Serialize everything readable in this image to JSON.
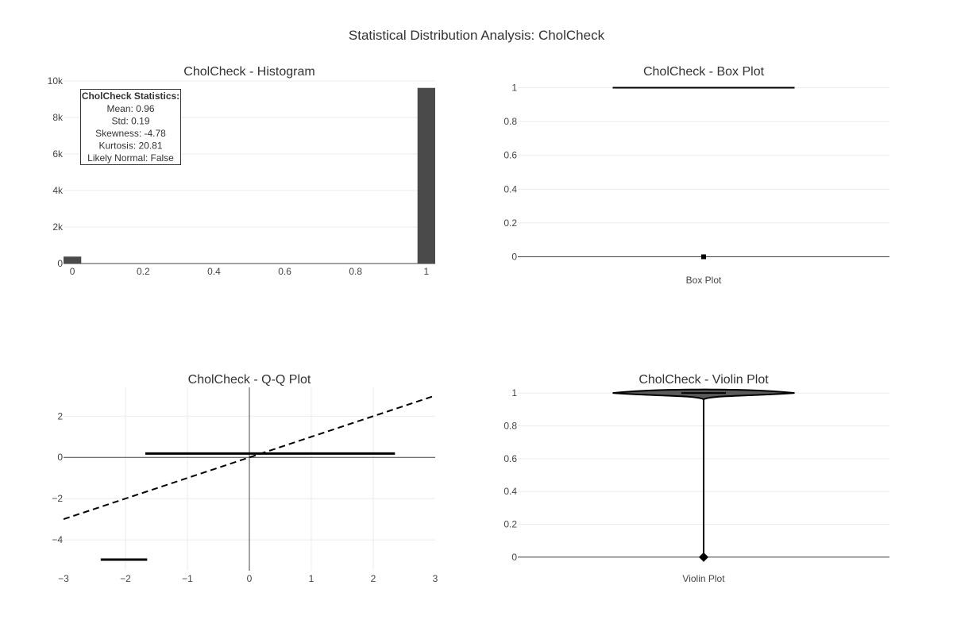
{
  "title": "Statistical Distribution Analysis: CholCheck",
  "colors": {
    "bar": "#4a4a4a",
    "line": "#000000",
    "violin_fill": "#5a5a5a"
  },
  "chart_data": [
    {
      "id": "histogram",
      "type": "bar",
      "title": "CholCheck - Histogram",
      "bins": [
        {
          "x0": -0.025,
          "x1": 0.025,
          "count": 380
        },
        {
          "x0": 0.975,
          "x1": 1.025,
          "count": 9620
        }
      ],
      "xlim": [
        -0.025,
        1.025
      ],
      "ylim": [
        0,
        10000
      ],
      "xticks": [
        {
          "v": 0,
          "label": "0"
        },
        {
          "v": 0.2,
          "label": "0.2"
        },
        {
          "v": 0.4,
          "label": "0.4"
        },
        {
          "v": 0.6,
          "label": "0.6"
        },
        {
          "v": 0.8,
          "label": "0.8"
        },
        {
          "v": 1,
          "label": "1"
        }
      ],
      "yticks": [
        {
          "v": 0,
          "label": "0"
        },
        {
          "v": 2000,
          "label": "2k"
        },
        {
          "v": 4000,
          "label": "4k"
        },
        {
          "v": 6000,
          "label": "6k"
        },
        {
          "v": 8000,
          "label": "8k"
        },
        {
          "v": 10000,
          "label": "10k"
        }
      ],
      "stats": {
        "heading": "CholCheck Statistics:",
        "lines": [
          "Mean: 0.96",
          "Std: 0.19",
          "Skewness: -4.78",
          "Kurtosis: 20.81",
          "Likely Normal: False"
        ]
      }
    },
    {
      "id": "box",
      "type": "box",
      "title": "CholCheck - Box Plot",
      "category": "Box Plot",
      "q1": 1,
      "median": 1,
      "q3": 1,
      "lowerfence": 1,
      "upperfence": 1,
      "outliers": [
        0
      ],
      "ylim": [
        -0.04,
        1.04
      ],
      "yticks": [
        {
          "v": 0,
          "label": "0"
        },
        {
          "v": 0.2,
          "label": "0.2"
        },
        {
          "v": 0.4,
          "label": "0.4"
        },
        {
          "v": 0.6,
          "label": "0.6"
        },
        {
          "v": 0.8,
          "label": "0.8"
        },
        {
          "v": 1,
          "label": "1"
        }
      ]
    },
    {
      "id": "qq",
      "type": "scatter",
      "title": "CholCheck - Q-Q Plot",
      "segments": [
        {
          "x": [
            -2.4,
            -1.65
          ],
          "y": [
            -4.96,
            -4.96
          ]
        },
        {
          "x": [
            -1.68,
            2.35
          ],
          "y": [
            0.19,
            0.19
          ]
        }
      ],
      "reference_line": {
        "x": [
          -3,
          3
        ],
        "y": [
          -3,
          3
        ]
      },
      "xlim": [
        -3,
        3
      ],
      "ylim": [
        -5.5,
        3.4
      ],
      "xticks": [
        {
          "v": -3,
          "label": "−3"
        },
        {
          "v": -2,
          "label": "−2"
        },
        {
          "v": -1,
          "label": "−1"
        },
        {
          "v": 0,
          "label": "0"
        },
        {
          "v": 1,
          "label": "1"
        },
        {
          "v": 2,
          "label": "2"
        },
        {
          "v": 3,
          "label": "3"
        }
      ],
      "yticks": [
        {
          "v": -4,
          "label": "−4"
        },
        {
          "v": -2,
          "label": "−2"
        },
        {
          "v": 0,
          "label": "0"
        },
        {
          "v": 2,
          "label": "2"
        }
      ]
    },
    {
      "id": "violin",
      "type": "violin",
      "title": "CholCheck - Violin Plot",
      "category": "Violin Plot",
      "min": 0,
      "max": 1,
      "median": 1,
      "outliers": [
        0
      ],
      "ylim": [
        -0.01,
        1.01
      ],
      "yticks": [
        {
          "v": 0,
          "label": "0"
        },
        {
          "v": 0.2,
          "label": "0.2"
        },
        {
          "v": 0.4,
          "label": "0.4"
        },
        {
          "v": 0.6,
          "label": "0.6"
        },
        {
          "v": 0.8,
          "label": "0.8"
        },
        {
          "v": 1,
          "label": "1"
        }
      ]
    }
  ]
}
